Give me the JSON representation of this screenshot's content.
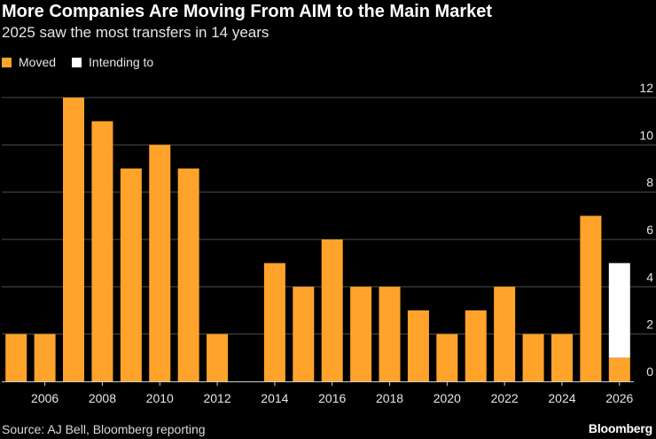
{
  "chart_data": {
    "type": "bar",
    "title": "More Companies Are Moving From AIM to the Main Market",
    "subtitle": "2025 saw the most transfers in 14 years",
    "categories": [
      "2005",
      "2006",
      "2007",
      "2008",
      "2009",
      "2010",
      "2011",
      "2012",
      "2013",
      "2014",
      "2015",
      "2016",
      "2017",
      "2018",
      "2019",
      "2020",
      "2021",
      "2022",
      "2023",
      "2024",
      "2025",
      "2026"
    ],
    "x_tick_labels": [
      "2006",
      "2008",
      "2010",
      "2012",
      "2014",
      "2016",
      "2018",
      "2020",
      "2022",
      "2024",
      "2026"
    ],
    "stacked": true,
    "series": [
      {
        "name": "Moved",
        "color": "#ffa32b",
        "values": [
          2,
          2,
          12,
          11,
          9,
          10,
          9,
          2,
          0,
          5,
          4,
          6,
          4,
          4,
          3,
          2,
          3,
          4,
          2,
          2,
          7,
          1
        ]
      },
      {
        "name": "Intending to",
        "color": "#ffffff",
        "values": [
          0,
          0,
          0,
          0,
          0,
          0,
          0,
          0,
          0,
          0,
          0,
          0,
          0,
          0,
          0,
          0,
          0,
          0,
          0,
          0,
          0,
          4
        ]
      }
    ],
    "ylim": [
      0,
      12
    ],
    "yticks": [
      0,
      2,
      4,
      6,
      8,
      10,
      12
    ],
    "y_axis_side": "right",
    "grid": true,
    "legend_position": "top-left",
    "source": "Source: AJ Bell, Bloomberg reporting",
    "brand": "Bloomberg"
  }
}
